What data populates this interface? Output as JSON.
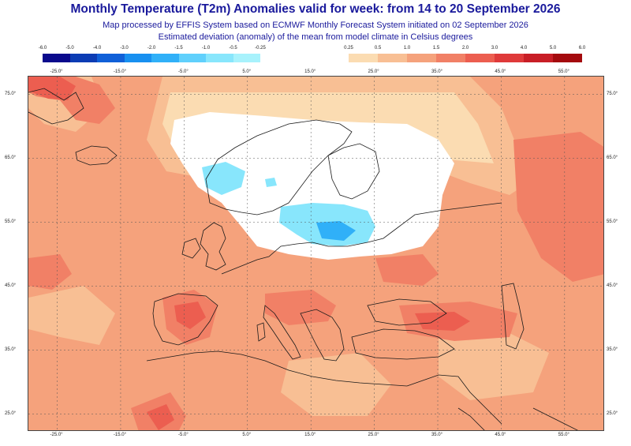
{
  "header": {
    "title": "Monthly Temperature (T2m) Anomalies valid for week: from 14 to 20 September 2026",
    "line1": "Map processed by EFFIS System based on ECMWF Monthly Forecast System initiated on 02 September 2026",
    "line2": "Estimated deviation (anomaly) of the mean from model climate in Celsius degrees"
  },
  "legend": {
    "negative": {
      "ticks": [
        "-6.0",
        "-5.0",
        "-4.0",
        "-3.0",
        "-2.0",
        "-1.5",
        "-1.0",
        "-0.5",
        "-0.25"
      ],
      "colors": [
        "#0a0a8c",
        "#0c3cb4",
        "#1060d8",
        "#1890f0",
        "#30b0f8",
        "#60d0fc",
        "#88e6fc",
        "#a8f2fc"
      ]
    },
    "positive": {
      "ticks": [
        "0.25",
        "0.5",
        "1.0",
        "1.5",
        "2.0",
        "3.0",
        "4.0",
        "5.0",
        "6.0"
      ],
      "colors": [
        "#fbdcb2",
        "#f8bf94",
        "#f5a27c",
        "#f18066",
        "#ec5e50",
        "#df3a3a",
        "#c81e26",
        "#a40a0e"
      ]
    }
  },
  "axes": {
    "lon_labels": [
      "-25.0°",
      "-15.0°",
      "-5.0°",
      "5.0°",
      "15.0°",
      "25.0°",
      "35.0°",
      "45.0°",
      "55.0°"
    ],
    "lat_labels": [
      "75.0°",
      "65.0°",
      "55.0°",
      "45.0°",
      "35.0°",
      "25.0°"
    ]
  },
  "map": {
    "background_anomaly": "1.0 to 1.5",
    "colors": {
      "base": "#f5a27c",
      "light": "#f8bf94",
      "pale": "#fbdcb2",
      "neutral": "#ffffff",
      "warm": "#f18066",
      "hot": "#ec5e50",
      "cool": "#88e6fc",
      "cooler": "#30b0f8",
      "border": "#1a1a1a",
      "grid": "#555555"
    }
  }
}
